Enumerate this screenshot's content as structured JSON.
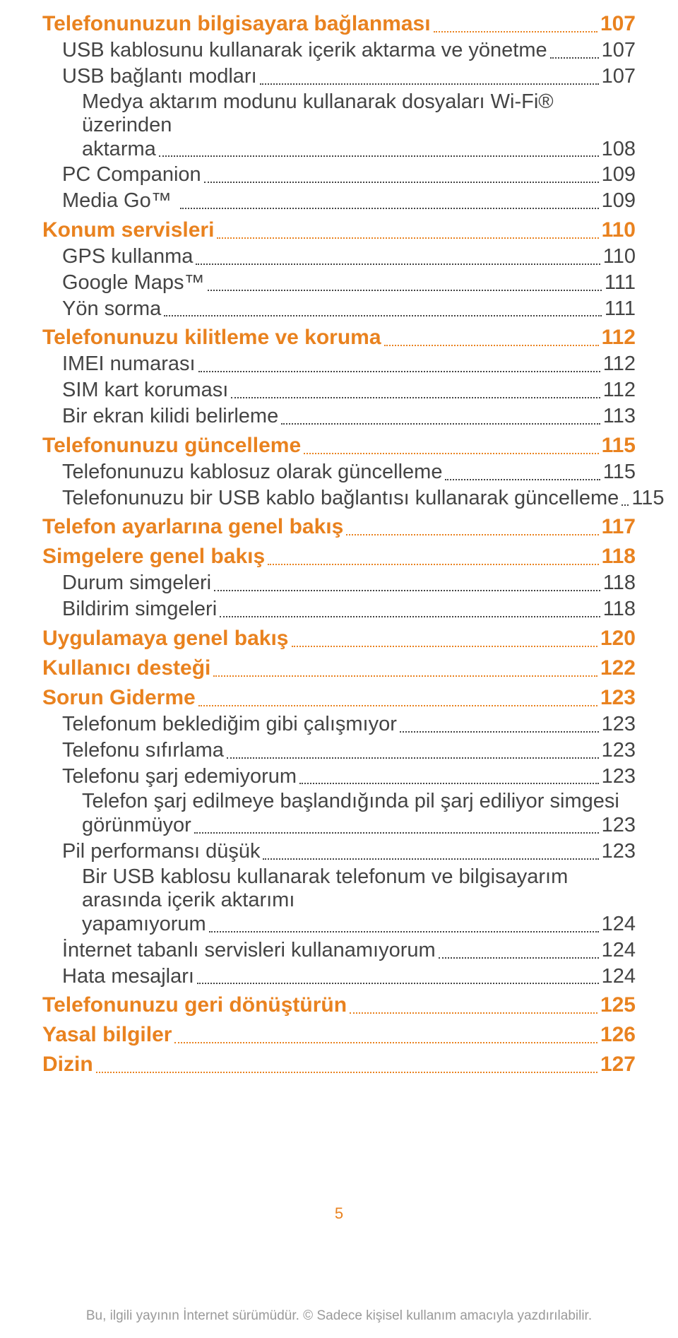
{
  "page_number": "5",
  "footer_text": "Bu, ilgili yayının İnternet sürümüdür. © Sadece kişisel kullanım amacıyla yazdırılabilir.",
  "colors": {
    "heading": "#e9821f",
    "sub": "#444444",
    "footer": "#9a9a9a",
    "background": "#ffffff"
  },
  "typography": {
    "heading_fontsize": 30,
    "sub_fontsize": 29,
    "footer_fontsize": 19,
    "pagenum_fontsize": 22,
    "font_family": "Arial, Helvetica, sans-serif"
  },
  "toc": [
    {
      "level": "heading",
      "label": "Telefonunuzun bilgisayara bağlanması",
      "page": "107"
    },
    {
      "level": "sub",
      "label": "USB kablosunu kullanarak içerik aktarma ve yönetme",
      "page": "107"
    },
    {
      "level": "sub",
      "label": "USB bağlantı modları",
      "page": "107"
    },
    {
      "level": "sub",
      "label": "Medya aktarım modunu kullanarak dosyaları Wi-Fi® üzerinden aktarma",
      "page": "108",
      "wrap": true
    },
    {
      "level": "sub",
      "label": "PC Companion",
      "page": "109"
    },
    {
      "level": "sub",
      "label": "Media Go™ ",
      "page": "109"
    },
    {
      "level": "heading",
      "label": "Konum servisleri",
      "page": "110"
    },
    {
      "level": "sub",
      "label": "GPS kullanma",
      "page": "110"
    },
    {
      "level": "sub",
      "label": "Google Maps™",
      "page": "111"
    },
    {
      "level": "sub",
      "label": "Yön sorma",
      "page": "111"
    },
    {
      "level": "heading",
      "label": "Telefonunuzu kilitleme ve koruma",
      "page": "112"
    },
    {
      "level": "sub",
      "label": "IMEI numarası",
      "page": "112"
    },
    {
      "level": "sub",
      "label": "SIM kart koruması",
      "page": "112"
    },
    {
      "level": "sub",
      "label": "Bir ekran kilidi belirleme",
      "page": "113"
    },
    {
      "level": "heading",
      "label": "Telefonunuzu güncelleme",
      "page": "115"
    },
    {
      "level": "sub",
      "label": "Telefonunuzu kablosuz olarak güncelleme",
      "page": "115"
    },
    {
      "level": "sub",
      "label": "Telefonunuzu bir USB kablo bağlantısı kullanarak güncelleme",
      "page": "115"
    },
    {
      "level": "heading",
      "label": "Telefon ayarlarına genel bakış",
      "page": "117"
    },
    {
      "level": "heading",
      "label": "Simgelere genel bakış",
      "page": "118"
    },
    {
      "level": "sub",
      "label": "Durum simgeleri",
      "page": "118"
    },
    {
      "level": "sub",
      "label": "Bildirim simgeleri",
      "page": "118"
    },
    {
      "level": "heading",
      "label": "Uygulamaya genel bakış",
      "page": "120"
    },
    {
      "level": "heading",
      "label": "Kullanıcı desteği",
      "page": "122"
    },
    {
      "level": "heading",
      "label": "Sorun Giderme",
      "page": "123"
    },
    {
      "level": "sub",
      "label": "Telefonum beklediğim gibi çalışmıyor",
      "page": "123"
    },
    {
      "level": "sub",
      "label": "Telefonu sıfırlama",
      "page": "123"
    },
    {
      "level": "sub",
      "label": "Telefonu şarj edemiyorum",
      "page": "123"
    },
    {
      "level": "sub",
      "label": "Telefon şarj edilmeye başlandığında pil şarj ediliyor simgesi görünmüyor",
      "page": "123",
      "wrap": true
    },
    {
      "level": "sub",
      "label": "Pil performansı düşük",
      "page": "123"
    },
    {
      "level": "sub",
      "label": "Bir USB kablosu kullanarak telefonum ve bilgisayarım arasında içerik aktarımı yapamıyorum",
      "page": "124",
      "wrap": true
    },
    {
      "level": "sub",
      "label": "İnternet tabanlı servisleri kullanamıyorum",
      "page": "124"
    },
    {
      "level": "sub",
      "label": "Hata mesajları",
      "page": "124"
    },
    {
      "level": "heading",
      "label": "Telefonunuzu geri dönüştürün",
      "page": "125"
    },
    {
      "level": "heading",
      "label": "Yasal bilgiler",
      "page": "126"
    },
    {
      "level": "heading",
      "label": "Dizin",
      "page": "127"
    }
  ]
}
